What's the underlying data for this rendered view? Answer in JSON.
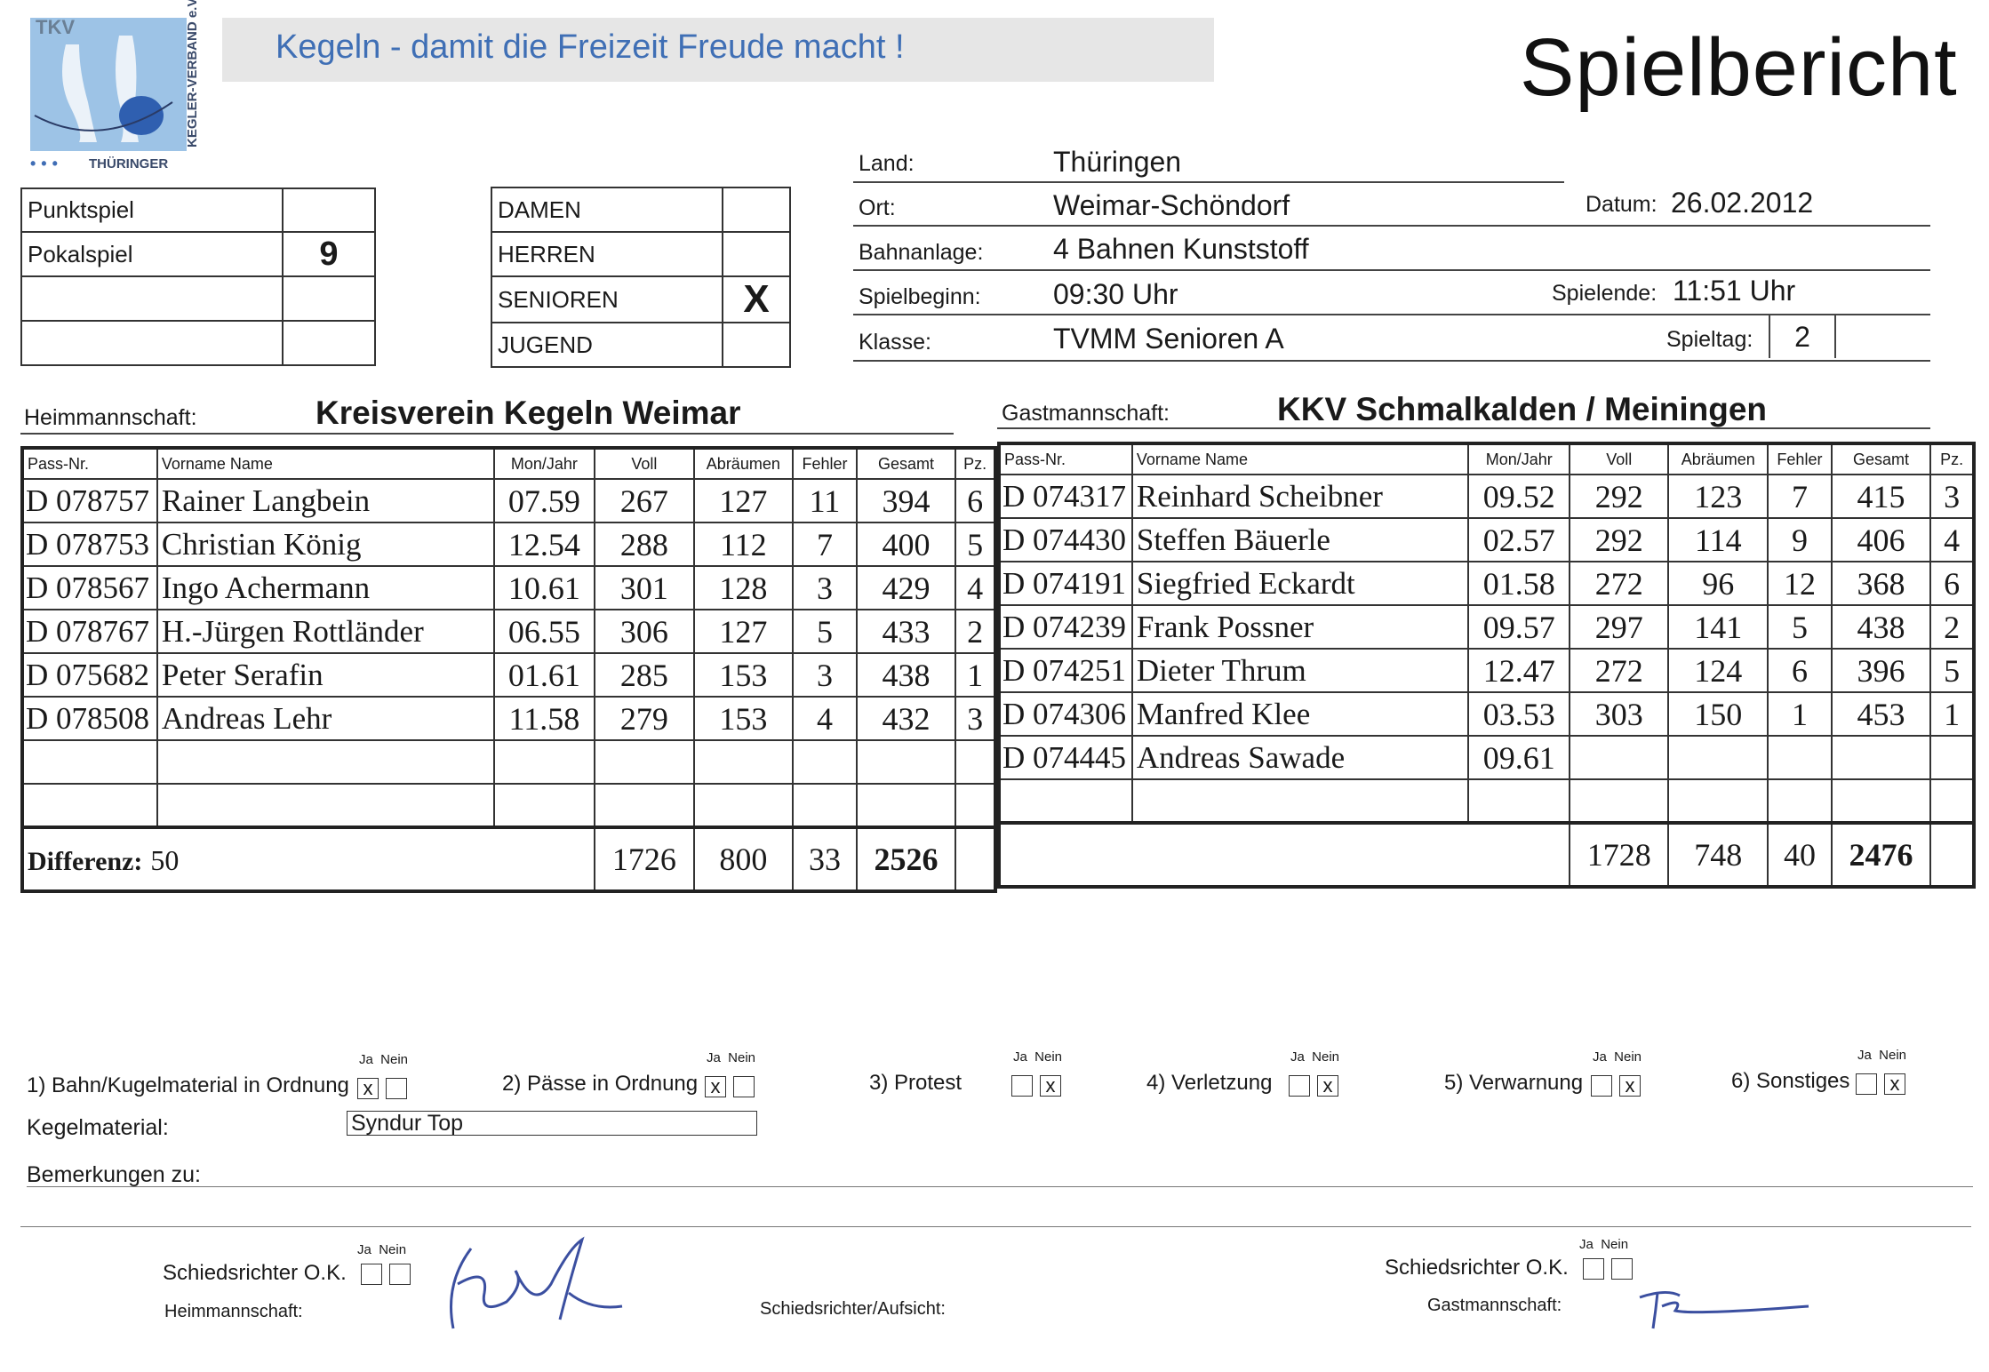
{
  "logo": {
    "abbr": "TKV",
    "org_vertical": "KEGLER-VERBAND e.V.",
    "org_region": "THÜRINGER"
  },
  "slogan": "Kegeln  -  damit die Freizeit Freude macht !",
  "title": "Spielbericht",
  "match_type": {
    "rows": [
      {
        "label": "Punktspiel",
        "value": ""
      },
      {
        "label": "Pokalspiel",
        "value": "9"
      },
      {
        "label": "",
        "value": ""
      },
      {
        "label": "",
        "value": ""
      }
    ]
  },
  "category": {
    "rows": [
      {
        "label": "DAMEN",
        "mark": ""
      },
      {
        "label": "HERREN",
        "mark": ""
      },
      {
        "label": "SENIOREN",
        "mark": "X"
      },
      {
        "label": "JUGEND",
        "mark": ""
      }
    ]
  },
  "info": {
    "land_label": "Land:",
    "land": "Thüringen",
    "ort_label": "Ort:",
    "ort": "Weimar-Schöndorf",
    "datum_label": "Datum:",
    "datum": "26.02.2012",
    "bahn_label": "Bahnanlage:",
    "bahn": "4 Bahnen Kunststoff",
    "beginn_label": "Spielbeginn:",
    "beginn": "09:30 Uhr",
    "ende_label": "Spielende:",
    "ende": "11:51 Uhr",
    "klasse_label": "Klasse:",
    "klasse": "TVMM Senioren A",
    "spieltag_label": "Spieltag:",
    "spieltag": "2"
  },
  "home": {
    "label": "Heimmannschaft:",
    "name": "Kreisverein Kegeln Weimar",
    "columns": [
      "Pass-Nr.",
      "Vorname  Name",
      "Mon/Jahr",
      "Voll",
      "Abräumen",
      "Fehler",
      "Gesamt",
      "Pz."
    ],
    "players": [
      [
        "D 078757",
        "Rainer Langbein",
        "07.59",
        "267",
        "127",
        "11",
        "394",
        "6"
      ],
      [
        "D 078753",
        "Christian König",
        "12.54",
        "288",
        "112",
        "7",
        "400",
        "5"
      ],
      [
        "D 078567",
        "Ingo Achermann",
        "10.61",
        "301",
        "128",
        "3",
        "429",
        "4"
      ],
      [
        "D 078767",
        "H.-Jürgen Rottländer",
        "06.55",
        "306",
        "127",
        "5",
        "433",
        "2"
      ],
      [
        "D 075682",
        "Peter Serafin",
        "01.61",
        "285",
        "153",
        "3",
        "438",
        "1"
      ],
      [
        "D 078508",
        "Andreas Lehr",
        "11.58",
        "279",
        "153",
        "4",
        "432",
        "3"
      ],
      [
        "",
        "",
        "",
        "",
        "",
        "",
        "",
        ""
      ],
      [
        "",
        "",
        "",
        "",
        "",
        "",
        "",
        ""
      ]
    ],
    "diff_label": "Differenz:",
    "diff": "50",
    "totals": {
      "voll": "1726",
      "abr": "800",
      "fehler": "33",
      "gesamt": "2526"
    }
  },
  "guest": {
    "label": "Gastmannschaft:",
    "name": "KKV Schmalkalden / Meiningen",
    "columns": [
      "Pass-Nr.",
      "Vorname  Name",
      "Mon/Jahr",
      "Voll",
      "Abräumen",
      "Fehler",
      "Gesamt",
      "Pz."
    ],
    "players": [
      [
        "D 074317",
        "Reinhard Scheibner",
        "09.52",
        "292",
        "123",
        "7",
        "415",
        "3"
      ],
      [
        "D 074430",
        "Steffen Bäuerle",
        "02.57",
        "292",
        "114",
        "9",
        "406",
        "4"
      ],
      [
        "D 074191",
        "Siegfried Eckardt",
        "01.58",
        "272",
        "96",
        "12",
        "368",
        "6"
      ],
      [
        "D 074239",
        "Frank Possner",
        "09.57",
        "297",
        "141",
        "5",
        "438",
        "2"
      ],
      [
        "D 074251",
        "Dieter Thrum",
        "12.47",
        "272",
        "124",
        "6",
        "396",
        "5"
      ],
      [
        "D 074306",
        "Manfred Klee",
        "03.53",
        "303",
        "150",
        "1",
        "453",
        "1"
      ],
      [
        "D 074445",
        "Andreas Sawade",
        "09.61",
        "",
        "",
        "",
        "",
        ""
      ],
      [
        "",
        "",
        "",
        "",
        "",
        "",
        "",
        ""
      ]
    ],
    "totals": {
      "voll": "1728",
      "abr": "748",
      "fehler": "40",
      "gesamt": "2476"
    }
  },
  "checks": {
    "ja": "Ja",
    "nein": "Nein",
    "items": [
      {
        "label": "1) Bahn/Kugelmaterial in Ordnung",
        "ja": "x",
        "nein": ""
      },
      {
        "label": "2) Pässe in Ordnung",
        "ja": "x",
        "nein": ""
      },
      {
        "label": "3) Protest",
        "ja": "",
        "nein": "x"
      },
      {
        "label": "4) Verletzung",
        "ja": "",
        "nein": "x"
      },
      {
        "label": "5) Verwarnung",
        "ja": "",
        "nein": "x"
      },
      {
        "label": "6) Sonstiges",
        "ja": "",
        "nein": "x"
      }
    ]
  },
  "material_label": "Kegelmaterial:",
  "material": "Syndur Top",
  "remarks_label": "Bemerkungen zu:",
  "footer": {
    "sr_ok": "Schiedsrichter O.K.",
    "heim": "Heimmannschaft:",
    "aufsicht": "Schiedsrichter/Aufsicht:",
    "gast": "Gastmannschaft:"
  }
}
